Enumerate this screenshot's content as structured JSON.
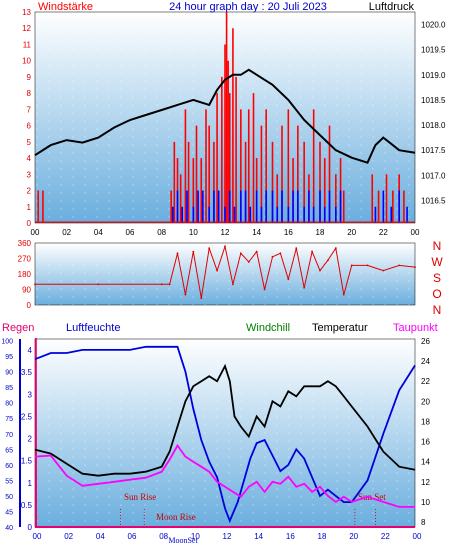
{
  "colors": {
    "wind_speed": "#ff0000",
    "wind_gust": "#0000ff",
    "pressure": "#000000",
    "rain": "#e60070",
    "humidity": "#0000dd",
    "windchill": "#008000",
    "temperature": "#000000",
    "dewpoint": "#ff00ff",
    "sun_moon_label": "#cc0000",
    "bg_top": "#ffffff",
    "bg_bottom": "#6aaede"
  },
  "header": {
    "left_label": "Windstärke",
    "title": "24 hour graph day : 20 Juli 2023",
    "right_label": "Luftdruck"
  },
  "middle": {
    "direction_letters": [
      "N",
      "W",
      "S",
      "O",
      "N"
    ]
  },
  "bottom_header": {
    "rain_label": "Regen",
    "humidity_label": "Luftfeuchte",
    "windchill_label": "Windchill",
    "temperature_label": "Temperatur",
    "dewpoint_label": "Taupunkt"
  },
  "annotations": {
    "sun_rise": "Sun Rise",
    "moon_rise": "Moon Rise",
    "moon_set": "MoonSet",
    "sun_set": "Sun Set"
  },
  "chart_data": [
    {
      "type": "line",
      "x_ticks": [
        "00",
        "02",
        "04",
        "06",
        "08",
        "10",
        "12",
        "14",
        "16",
        "18",
        "20",
        "22",
        "00"
      ],
      "xlim": [
        0,
        24
      ],
      "left_axis": {
        "ticks": [
          0,
          1,
          2,
          3,
          4,
          5,
          6,
          7,
          8,
          9,
          10,
          11,
          12,
          13
        ],
        "ylim": [
          0,
          13
        ]
      },
      "right_axis": {
        "ticks": [
          1016.5,
          1017,
          1017.5,
          1018,
          1018.5,
          1019,
          1019.5,
          1020
        ],
        "ylim": [
          1016.05,
          1020.25
        ]
      },
      "series": [
        {
          "name": "Luftdruck",
          "axis": "right",
          "x": [
            0,
            1,
            2,
            3,
            4,
            5,
            6,
            7,
            8,
            9,
            10,
            11,
            11.5,
            12,
            12.5,
            13,
            13.5,
            14,
            15,
            16,
            17,
            18,
            19,
            20,
            20.5,
            21,
            21.5,
            22,
            23,
            24
          ],
          "y": [
            1017.4,
            1017.6,
            1017.7,
            1017.65,
            1017.75,
            1017.95,
            1018.1,
            1018.2,
            1018.3,
            1018.4,
            1018.5,
            1018.4,
            1018.7,
            1018.9,
            1019.0,
            1019.0,
            1019.1,
            1019.0,
            1018.8,
            1018.5,
            1018.1,
            1017.8,
            1017.5,
            1017.35,
            1017.3,
            1017.25,
            1017.6,
            1017.75,
            1017.5,
            1017.45
          ]
        },
        {
          "name": "Windstärke",
          "axis": "left",
          "style": "spikes",
          "x": [
            0.2,
            0.5,
            8.6,
            8.8,
            9.0,
            9.2,
            9.5,
            9.7,
            10.0,
            10.2,
            10.5,
            10.8,
            11.0,
            11.3,
            11.5,
            11.8,
            12.0,
            12.1,
            12.2,
            12.3,
            12.5,
            12.7,
            13.0,
            13.3,
            13.5,
            13.8,
            14.0,
            14.3,
            14.6,
            15.0,
            15.3,
            15.6,
            16.0,
            16.3,
            16.6,
            17.0,
            17.3,
            17.6,
            18.0,
            18.3,
            18.6,
            19.0,
            19.3,
            19.5,
            21.3,
            21.7,
            22.2,
            22.6,
            23.0,
            23.3
          ],
          "y": [
            2,
            2,
            2,
            5,
            4,
            3,
            7,
            5,
            4,
            6,
            4,
            7,
            6,
            5,
            8,
            9,
            11,
            13,
            10,
            8,
            12,
            9,
            7,
            5,
            7,
            8,
            4,
            6,
            7,
            5,
            3,
            6,
            7,
            4,
            6,
            5,
            3,
            7,
            5,
            4,
            6,
            3,
            4,
            2,
            3,
            2,
            3,
            2,
            3,
            2
          ]
        },
        {
          "name": "Böen",
          "axis": "left",
          "style": "spikes",
          "x": [
            8.7,
            9.0,
            9.3,
            9.6,
            10.0,
            10.3,
            10.6,
            11.0,
            11.3,
            11.6,
            12.0,
            12.3,
            12.6,
            13.0,
            13.3,
            13.6,
            14.0,
            14.3,
            14.6,
            15.0,
            15.3,
            15.6,
            16.0,
            16.3,
            16.6,
            17.0,
            17.3,
            17.6,
            18.0,
            18.3,
            18.6,
            19.0,
            19.3,
            21.5,
            22.0,
            22.5,
            23.0,
            23.5
          ],
          "y": [
            1,
            2,
            1,
            2,
            1,
            2,
            2,
            1,
            2,
            2,
            1,
            2,
            1,
            2,
            2,
            1,
            2,
            1,
            2,
            2,
            1,
            2,
            1,
            2,
            2,
            1,
            2,
            1,
            2,
            1,
            2,
            1,
            2,
            1,
            2,
            1,
            2,
            1
          ]
        }
      ]
    },
    {
      "type": "scatter",
      "y_ticks": [
        0,
        90,
        180,
        270,
        360
      ],
      "ylim": [
        0,
        360
      ],
      "xlim": [
        0,
        24
      ],
      "series": [
        {
          "name": "Windrichtung",
          "x": [
            0,
            4,
            8,
            8.5,
            9,
            9.5,
            10,
            10.5,
            11,
            11.5,
            12,
            12.5,
            13,
            13.5,
            14,
            14.5,
            15,
            15.5,
            16,
            16.5,
            17,
            17.5,
            18,
            18.5,
            19,
            19.5,
            20,
            21,
            22,
            23,
            24
          ],
          "y": [
            120,
            120,
            120,
            120,
            300,
            60,
            310,
            40,
            330,
            200,
            340,
            120,
            300,
            250,
            310,
            90,
            280,
            300,
            150,
            330,
            100,
            310,
            200,
            260,
            330,
            60,
            230,
            230,
            200,
            230,
            220
          ]
        }
      ]
    },
    {
      "type": "line",
      "xlim": [
        0,
        24
      ],
      "left_rain_axis": {
        "ticks": [
          0,
          0.5,
          1,
          1.5,
          2,
          2.5,
          3,
          3.5,
          4
        ],
        "ylim": [
          0,
          4.25
        ]
      },
      "left_humidity_axis": {
        "ticks": [
          40,
          45,
          50,
          55,
          60,
          65,
          70,
          75,
          80,
          85,
          90,
          95,
          100
        ],
        "ylim": [
          40,
          100.5
        ]
      },
      "right_temperature_axis": {
        "ticks": [
          8,
          10,
          12,
          14,
          16,
          18,
          20,
          22,
          24,
          26
        ],
        "ylim": [
          7.5,
          26.2
        ]
      },
      "series": [
        {
          "name": "Regen",
          "axis": "rain",
          "x": [
            0,
            0.05,
            0.06,
            24
          ],
          "y": [
            4.25,
            4.25,
            0,
            0
          ]
        },
        {
          "name": "Luftfeuchte",
          "axis": "humidity",
          "x": [
            0,
            1,
            2,
            3,
            4,
            5,
            6,
            7,
            8,
            9,
            9.5,
            10,
            10.5,
            11,
            11.5,
            12,
            12.3,
            12.8,
            13.2,
            13.6,
            14,
            14.5,
            15,
            15.5,
            16,
            16.5,
            17,
            17.5,
            18,
            18.5,
            19,
            19.5,
            20,
            21,
            22,
            23,
            24
          ],
          "y": [
            94,
            96,
            96,
            97,
            97,
            97,
            97,
            98,
            98,
            98,
            90,
            78,
            68,
            61,
            56,
            46,
            42,
            48,
            55,
            62,
            67,
            68,
            63,
            58,
            60,
            65,
            62,
            56,
            50,
            52,
            50,
            48,
            48,
            55,
            70,
            84,
            92
          ]
        },
        {
          "name": "Temperatur",
          "axis": "temperature",
          "x": [
            0,
            1,
            2,
            3,
            4,
            5,
            6,
            7,
            8,
            8.5,
            9,
            9.5,
            10,
            10.5,
            11,
            11.5,
            12,
            12.3,
            12.6,
            13,
            13.5,
            14,
            14.5,
            15,
            15.5,
            16,
            16.5,
            17,
            17.5,
            18,
            18.5,
            19,
            19.5,
            20,
            21,
            22,
            23,
            24
          ],
          "y": [
            15.2,
            14.8,
            13.8,
            12.8,
            12.6,
            12.8,
            12.8,
            13.0,
            13.5,
            15.0,
            17.5,
            20.0,
            21.5,
            22.0,
            22.5,
            22.0,
            23.5,
            22.0,
            18.5,
            17.5,
            16.5,
            18.5,
            17.5,
            20.0,
            19.5,
            21.0,
            20.5,
            21.5,
            21.5,
            21.5,
            22.0,
            21.5,
            20.5,
            19.5,
            17.5,
            15.0,
            13.5,
            13.2
          ]
        },
        {
          "name": "Taupunkt",
          "axis": "temperature",
          "x": [
            0,
            1,
            2,
            3,
            4,
            5,
            6,
            7,
            8,
            8.5,
            9,
            9.5,
            10,
            10.5,
            11,
            11.5,
            12,
            12.5,
            13,
            13.5,
            14,
            14.5,
            15,
            15.5,
            16,
            16.5,
            17,
            17.5,
            18,
            18.5,
            19,
            19.5,
            20,
            21,
            22,
            23,
            24
          ],
          "y": [
            14.5,
            14.6,
            12.6,
            11.6,
            11.8,
            12.0,
            12.2,
            12.4,
            13.0,
            14.2,
            15.6,
            14.5,
            14.0,
            13.5,
            13.0,
            12.0,
            11.5,
            11.0,
            10.5,
            11.5,
            12.0,
            11.0,
            12.0,
            11.8,
            12.5,
            11.5,
            11.8,
            11.0,
            11.5,
            10.6,
            10.0,
            10.5,
            10.0,
            10.5,
            10.0,
            9.5,
            9.5
          ]
        }
      ],
      "event_lines": [
        {
          "label": "Sun Rise",
          "x": 5.4
        },
        {
          "label": "Moon Rise",
          "x": 6.9
        },
        {
          "label": "MoonSet",
          "x": 20.2
        },
        {
          "label": "Sun Set",
          "x": 21.5
        }
      ]
    }
  ]
}
